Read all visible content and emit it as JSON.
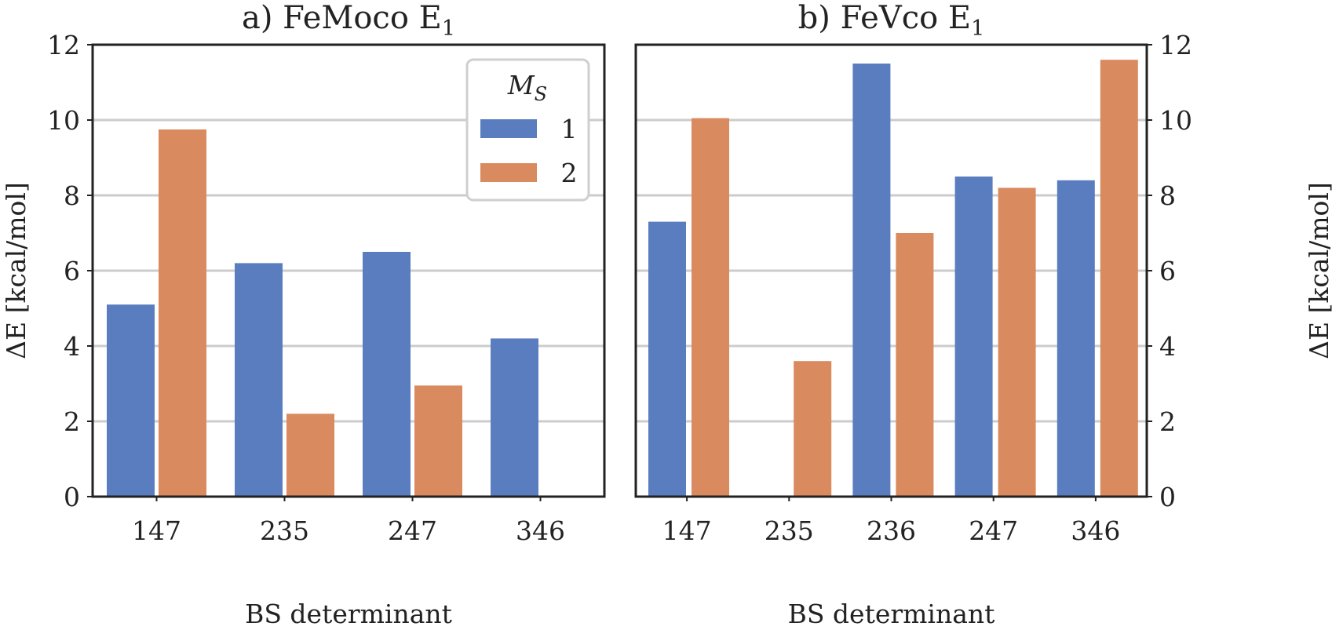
{
  "chart_data": [
    {
      "type": "bar",
      "title": "a) FeMoco E",
      "title_subscript": "1",
      "xlabel": "BS determinant",
      "ylabel": "ΔE [kcal/mol]",
      "ylim": [
        0,
        12
      ],
      "yticks": [
        0,
        2,
        4,
        6,
        8,
        10,
        12
      ],
      "ytick_side": "left",
      "grid": "horizontal",
      "categories": [
        "147",
        "235",
        "247",
        "346"
      ],
      "series": [
        {
          "name": "1",
          "color": "#5a7dc0",
          "values": [
            5.1,
            6.2,
            6.5,
            4.2
          ]
        },
        {
          "name": "2",
          "color": "#d98a5f",
          "values": [
            9.75,
            2.2,
            2.95,
            null
          ]
        }
      ],
      "legend": {
        "title": "M",
        "title_subscript": "S",
        "placement": "upper-right",
        "entries": [
          "1",
          "2"
        ]
      }
    },
    {
      "type": "bar",
      "title": "b) FeVco E",
      "title_subscript": "1",
      "xlabel": "BS determinant",
      "ylabel": "ΔE [kcal/mol]",
      "ylim": [
        0,
        12
      ],
      "yticks": [
        0,
        2,
        4,
        6,
        8,
        10,
        12
      ],
      "ytick_side": "right",
      "grid": "horizontal",
      "categories": [
        "147",
        "235",
        "236",
        "247",
        "346"
      ],
      "series": [
        {
          "name": "1",
          "color": "#5a7dc0",
          "values": [
            7.3,
            null,
            11.5,
            8.5,
            8.4
          ]
        },
        {
          "name": "2",
          "color": "#d98a5f",
          "values": [
            10.05,
            3.6,
            7.0,
            8.2,
            11.6
          ]
        }
      ]
    }
  ]
}
